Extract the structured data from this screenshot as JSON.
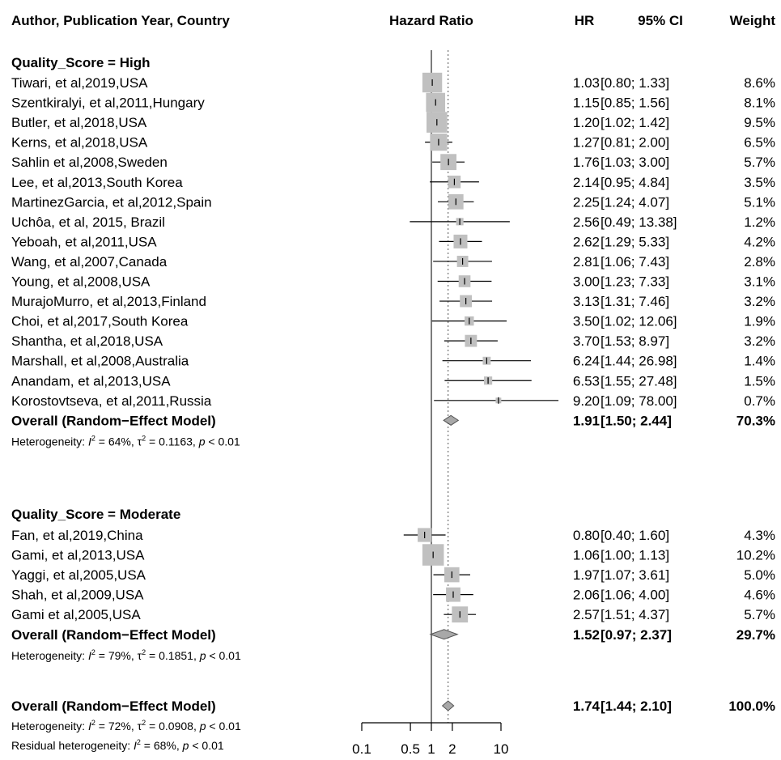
{
  "chart_data": {
    "type": "forest",
    "scale": "log",
    "columns": {
      "study": "Author, Publication Year, Country",
      "plot": "Hazard Ratio",
      "hr": "HR",
      "ci": "95% CI",
      "weight": "Weight"
    },
    "x_ticks": [
      {
        "value": 0.1,
        "label": "0.1"
      },
      {
        "value": 0.5,
        "label": "0.5"
      },
      {
        "value": 1,
        "label": "1"
      },
      {
        "value": 2,
        "label": "2"
      },
      {
        "value": 10,
        "label": "10"
      }
    ],
    "xlim": [
      0.1,
      10
    ],
    "reference_line": 1,
    "subgroups": [
      {
        "label": "Quality_Score = High",
        "studies": [
          {
            "label": "Tiwari, et al,2019,USA",
            "hr": 1.03,
            "lo": 0.8,
            "hi": 1.33,
            "hr_text": "1.03",
            "ci_text": "[0.80;  1.33]",
            "weight": 8.6,
            "weight_text": "8.6%"
          },
          {
            "label": "Szentkiralyi, et al,2011,Hungary",
            "hr": 1.15,
            "lo": 0.85,
            "hi": 1.56,
            "hr_text": "1.15",
            "ci_text": "[0.85;  1.56]",
            "weight": 8.1,
            "weight_text": "8.1%"
          },
          {
            "label": "Butler, et al,2018,USA",
            "hr": 1.2,
            "lo": 1.02,
            "hi": 1.42,
            "hr_text": "1.20",
            "ci_text": "[1.02;  1.42]",
            "weight": 9.5,
            "weight_text": "9.5%"
          },
          {
            "label": "Kerns, et al,2018,USA",
            "hr": 1.27,
            "lo": 0.81,
            "hi": 2.0,
            "hr_text": "1.27",
            "ci_text": "[0.81;  2.00]",
            "weight": 6.5,
            "weight_text": "6.5%"
          },
          {
            "label": "Sahlin et al,2008,Sweden",
            "hr": 1.76,
            "lo": 1.03,
            "hi": 3.0,
            "hr_text": "1.76",
            "ci_text": "[1.03;  3.00]",
            "weight": 5.7,
            "weight_text": "5.7%"
          },
          {
            "label": "Lee, et al,2013,South Korea",
            "hr": 2.14,
            "lo": 0.95,
            "hi": 4.84,
            "hr_text": "2.14",
            "ci_text": "[0.95;  4.84]",
            "weight": 3.5,
            "weight_text": "3.5%"
          },
          {
            "label": "MartinezGarcia, et al,2012,Spain",
            "hr": 2.25,
            "lo": 1.24,
            "hi": 4.07,
            "hr_text": "2.25",
            "ci_text": "[1.24;  4.07]",
            "weight": 5.1,
            "weight_text": "5.1%"
          },
          {
            "label": "Uchôa, et al, 2015, Brazil",
            "hr": 2.56,
            "lo": 0.49,
            "hi": 13.38,
            "hr_text": "2.56",
            "ci_text": "[0.49; 13.38]",
            "weight": 1.2,
            "weight_text": "1.2%"
          },
          {
            "label": "Yeboah, et al,2011,USA",
            "hr": 2.62,
            "lo": 1.29,
            "hi": 5.33,
            "hr_text": "2.62",
            "ci_text": "[1.29;  5.33]",
            "weight": 4.2,
            "weight_text": "4.2%"
          },
          {
            "label": "Wang, et al,2007,Canada",
            "hr": 2.81,
            "lo": 1.06,
            "hi": 7.43,
            "hr_text": "2.81",
            "ci_text": "[1.06;  7.43]",
            "weight": 2.8,
            "weight_text": "2.8%"
          },
          {
            "label": "Young, et al,2008,USA",
            "hr": 3.0,
            "lo": 1.23,
            "hi": 7.33,
            "hr_text": "3.00",
            "ci_text": "[1.23;  7.33]",
            "weight": 3.1,
            "weight_text": "3.1%"
          },
          {
            "label": "MurajoMurro, et al,2013,Finland",
            "hr": 3.13,
            "lo": 1.31,
            "hi": 7.46,
            "hr_text": "3.13",
            "ci_text": "[1.31;  7.46]",
            "weight": 3.2,
            "weight_text": "3.2%"
          },
          {
            "label": "Choi, et al,2017,South Korea",
            "hr": 3.5,
            "lo": 1.02,
            "hi": 12.06,
            "hr_text": "3.50",
            "ci_text": "[1.02; 12.06]",
            "weight": 1.9,
            "weight_text": "1.9%"
          },
          {
            "label": "Shantha, et al,2018,USA",
            "hr": 3.7,
            "lo": 1.53,
            "hi": 8.97,
            "hr_text": "3.70",
            "ci_text": "[1.53;  8.97]",
            "weight": 3.2,
            "weight_text": "3.2%"
          },
          {
            "label": "Marshall, et al,2008,Australia",
            "hr": 6.24,
            "lo": 1.44,
            "hi": 26.98,
            "hr_text": "6.24",
            "ci_text": "[1.44; 26.98]",
            "weight": 1.4,
            "weight_text": "1.4%"
          },
          {
            "label": "Anandam, et al,2013,USA",
            "hr": 6.53,
            "lo": 1.55,
            "hi": 27.48,
            "hr_text": "6.53",
            "ci_text": "[1.55; 27.48]",
            "weight": 1.5,
            "weight_text": "1.5%"
          },
          {
            "label": "Korostovtseva, et al,2011,Russia",
            "hr": 9.2,
            "lo": 1.09,
            "hi": 78.0,
            "hr_text": "9.20",
            "ci_text": "[1.09; 78.00]",
            "weight": 0.7,
            "weight_text": "0.7%"
          }
        ],
        "overall": {
          "label": "Overall (Random−Effect Model)",
          "hr": 1.91,
          "lo": 1.5,
          "hi": 2.44,
          "hr_text": "1.91",
          "ci_text": "[1.50;  2.44]",
          "weight": 70.3,
          "weight_text": "70.3%"
        },
        "heterogeneity": {
          "prefix": "Heterogeneity: ",
          "i2_text": " = 64%, ",
          "tau2_text": " = 0.1163, ",
          "p_text": " < 0.01"
        }
      },
      {
        "label": "Quality_Score = Moderate",
        "studies": [
          {
            "label": "Fan, et al,2019,China",
            "hr": 0.8,
            "lo": 0.4,
            "hi": 1.6,
            "hr_text": "0.80",
            "ci_text": "[0.40;  1.60]",
            "weight": 4.3,
            "weight_text": "4.3%"
          },
          {
            "label": "Gami, et al,2013,USA",
            "hr": 1.06,
            "lo": 1.0,
            "hi": 1.13,
            "hr_text": "1.06",
            "ci_text": "[1.00;  1.13]",
            "weight": 10.2,
            "weight_text": "10.2%"
          },
          {
            "label": "Yaggi, et al,2005,USA",
            "hr": 1.97,
            "lo": 1.07,
            "hi": 3.61,
            "hr_text": "1.97",
            "ci_text": "[1.07;  3.61]",
            "weight": 5.0,
            "weight_text": "5.0%"
          },
          {
            "label": "Shah, et al,2009,USA",
            "hr": 2.06,
            "lo": 1.06,
            "hi": 4.0,
            "hr_text": "2.06",
            "ci_text": "[1.06;  4.00]",
            "weight": 4.6,
            "weight_text": "4.6%"
          },
          {
            "label": "Gami et al,2005,USA",
            "hr": 2.57,
            "lo": 1.51,
            "hi": 4.37,
            "hr_text": "2.57",
            "ci_text": "[1.51;  4.37]",
            "weight": 5.7,
            "weight_text": "5.7%"
          }
        ],
        "overall": {
          "label": "Overall (Random−Effect Model)",
          "hr": 1.52,
          "lo": 0.97,
          "hi": 2.37,
          "hr_text": "1.52",
          "ci_text": "[0.97;  2.37]",
          "weight": 29.7,
          "weight_text": "29.7%"
        },
        "heterogeneity": {
          "prefix": "Heterogeneity: ",
          "i2_text": " = 79%, ",
          "tau2_text": " = 0.1851, ",
          "p_text": " < 0.01"
        }
      }
    ],
    "overall": {
      "label": "Overall (Random−Effect Model)",
      "hr": 1.74,
      "lo": 1.44,
      "hi": 2.1,
      "hr_text": "1.74",
      "ci_text": "[1.44;  2.10]",
      "weight": 100.0,
      "weight_text": "100.0%"
    },
    "overall_heterogeneity": {
      "prefix": "Heterogeneity: ",
      "i2_text": " = 72%, ",
      "tau2_text": " = 0.0908, ",
      "p_text": " < 0.01"
    },
    "residual_heterogeneity": {
      "prefix": "Residual heterogeneity: ",
      "i2_text": " = 68%, ",
      "p_text": " < 0.01"
    },
    "colors": {
      "box": "#c0c0c0",
      "diamond": "#a8a8a8",
      "line": "#000000",
      "reference": "#444444"
    }
  }
}
